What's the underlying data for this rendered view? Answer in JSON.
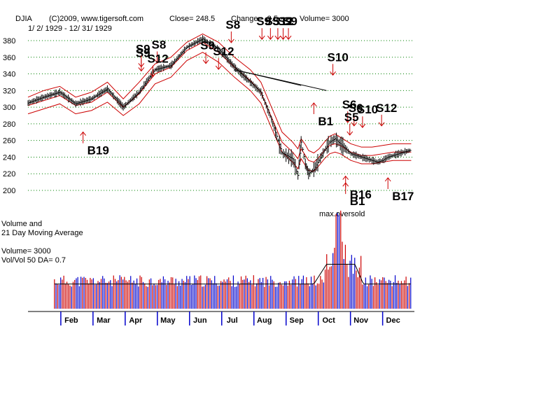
{
  "header": {
    "symbol": "DJIA",
    "copyright": "(C)2009, www.tigersoft.com",
    "close": "Close=   248.5",
    "change": "Change= -3.5",
    "volume": "Volume= 3000",
    "date_range": "1/ 2/ 1929 - 12/ 31/ 1929"
  },
  "volume_panel": {
    "title_line1": "Volume and",
    "title_line2": "21 Day Moving Average",
    "volume_text": "Volume= 3000",
    "ratio_text": "Vol/Vol 50 DA= 0.7"
  },
  "colors": {
    "price_bars": "#000000",
    "bands": "#cc0000",
    "signals": "#cc0000",
    "volume_up": "#cc0000",
    "volume_down": "#0000cc",
    "grid": "#008000",
    "trendline": "#000000"
  },
  "chart_data": [
    {
      "type": "line",
      "ylim": [
        200,
        380
      ],
      "y_ticks": [
        200,
        220,
        240,
        260,
        280,
        300,
        320,
        340,
        360,
        380
      ],
      "grid": "horizontal dotted",
      "months": [
        "Feb",
        "Mar",
        "Apr",
        "May",
        "Jun",
        "Jul",
        "Aug",
        "Sep",
        "Oct",
        "Nov",
        "Dec"
      ],
      "series": [
        {
          "kind": "daily high-low-close bars",
          "x_day": [
            0,
            15,
            30,
            45,
            60,
            75,
            90,
            105,
            120,
            135,
            150,
            165,
            180,
            195,
            210,
            220,
            230,
            240,
            250,
            255,
            258,
            262,
            265,
            270,
            275,
            280,
            285,
            290,
            295,
            300,
            305,
            310,
            315,
            320,
            325,
            330,
            335,
            340,
            345,
            350,
            355,
            362
          ],
          "values": [
            305,
            312,
            318,
            304,
            310,
            322,
            300,
            318,
            345,
            350,
            372,
            382,
            370,
            348,
            330,
            318,
            285,
            245,
            238,
            218,
            258,
            232,
            220,
            225,
            236,
            248,
            258,
            262,
            256,
            250,
            244,
            242,
            240,
            238,
            236,
            234,
            236,
            240,
            242,
            244,
            246,
            248.5
          ]
        },
        {
          "kind": "band upper",
          "values": [
            312,
            320,
            325,
            312,
            318,
            330,
            310,
            330,
            352,
            360,
            378,
            388,
            378,
            360,
            345,
            330,
            300,
            270,
            258,
            250,
            262,
            255,
            248,
            245,
            250,
            258,
            265,
            268,
            264,
            260,
            256,
            254,
            252,
            252,
            252,
            253,
            254,
            255,
            256,
            256,
            256,
            256
          ]
        },
        {
          "kind": "band middle",
          "values": [
            302,
            308,
            314,
            302,
            306,
            318,
            300,
            316,
            340,
            348,
            368,
            378,
            366,
            348,
            332,
            318,
            288,
            258,
            246,
            238,
            250,
            242,
            236,
            234,
            240,
            248,
            254,
            256,
            254,
            250,
            246,
            244,
            242,
            242,
            242,
            243,
            244,
            245,
            246,
            246,
            246,
            246
          ]
        },
        {
          "kind": "band lower",
          "values": [
            292,
            298,
            304,
            292,
            296,
            306,
            290,
            304,
            328,
            336,
            356,
            366,
            354,
            336,
            320,
            305,
            275,
            246,
            234,
            226,
            238,
            230,
            224,
            223,
            230,
            238,
            244,
            246,
            244,
            240,
            236,
            234,
            232,
            232,
            232,
            233,
            234,
            235,
            236,
            236,
            236,
            236
          ]
        }
      ],
      "trendlines": [
        {
          "from": {
            "x_day": 195,
            "y": 345
          },
          "to": {
            "x_day": 282,
            "y": 320
          }
        },
        {
          "from": {
            "x_day": 195,
            "y": 345
          },
          "to": {
            "x_day": 258,
            "y": 326
          }
        }
      ],
      "signals": [
        {
          "label": "S9",
          "x_day": 107,
          "y": 362,
          "dir": "down"
        },
        {
          "label": "S9",
          "x_day": 107,
          "y": 367,
          "dir": "down"
        },
        {
          "label": "S8",
          "x_day": 122,
          "y": 372,
          "dir": "down"
        },
        {
          "label": "S12",
          "x_day": 118,
          "y": 355,
          "dir": "down"
        },
        {
          "label": "S9",
          "x_day": 168,
          "y": 371,
          "dir": "down"
        },
        {
          "label": "S12",
          "x_day": 180,
          "y": 364,
          "dir": "down"
        },
        {
          "label": "S8",
          "x_day": 192,
          "y": 396,
          "dir": "down"
        },
        {
          "label": "S9",
          "x_day": 221,
          "y": 400,
          "dir": "down"
        },
        {
          "label": "S5",
          "x_day": 229,
          "y": 400,
          "dir": "down"
        },
        {
          "label": "S12",
          "x_day": 236,
          "y": 400,
          "dir": "down"
        },
        {
          "label": "S9",
          "x_day": 241,
          "y": 400,
          "dir": "down"
        },
        {
          "label": "S9",
          "x_day": 246,
          "y": 400,
          "dir": "down"
        },
        {
          "label": "S10",
          "x_day": 288,
          "y": 357,
          "dir": "down"
        },
        {
          "label": "S6",
          "x_day": 302,
          "y": 300,
          "dir": "down"
        },
        {
          "label": "S6",
          "x_day": 308,
          "y": 296,
          "dir": "down"
        },
        {
          "label": "S10",
          "x_day": 316,
          "y": 294,
          "dir": "down"
        },
        {
          "label": "S5",
          "x_day": 304,
          "y": 285,
          "dir": "down"
        },
        {
          "label": "S12",
          "x_day": 334,
          "y": 296,
          "dir": "down"
        },
        {
          "label": "B19",
          "x_day": 52,
          "y": 255,
          "dir": "up"
        },
        {
          "label": "B1",
          "x_day": 270,
          "y": 290,
          "dir": "up"
        },
        {
          "label": "B16",
          "x_day": 300,
          "y": 202,
          "dir": "up"
        },
        {
          "label": "B1",
          "x_day": 300,
          "y": 194,
          "dir": "up"
        },
        {
          "label": "B17",
          "x_day": 340,
          "y": 200,
          "dir": "up"
        }
      ],
      "annotation": "max.oversold"
    },
    {
      "type": "bar",
      "title": "Volume and 21 Day Moving Average",
      "volume_bars_from": [
        "Feb",
        "Dec"
      ],
      "moving_average": "21 day",
      "notable": {
        "spike_month": "Oct",
        "max_relative": 1.0
      }
    }
  ]
}
